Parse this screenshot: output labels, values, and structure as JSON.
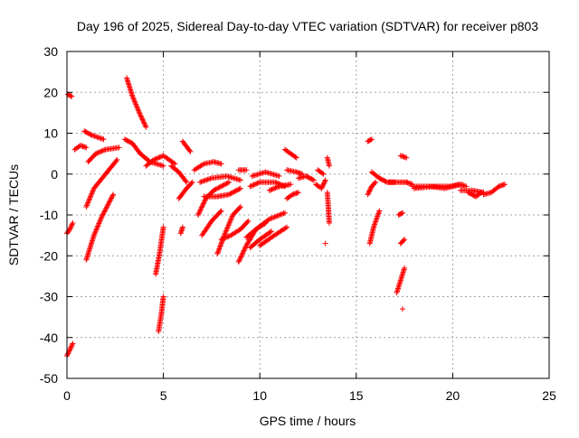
{
  "chart_data": {
    "type": "scatter",
    "title": "Day 196 of 2025, Sidereal Day-to-day VTEC variation (SDTVAR) for receiver p803",
    "xlabel": "GPS time / hours",
    "ylabel": "SDTVAR / TECUs",
    "xlim": [
      0,
      25
    ],
    "ylim": [
      -50,
      30
    ],
    "xticks": [
      0,
      5,
      10,
      15,
      20,
      25
    ],
    "yticks": [
      -50,
      -40,
      -30,
      -20,
      -10,
      0,
      10,
      20,
      30
    ],
    "grid": true,
    "marker": "+",
    "series": [
      {
        "name": "SDTVAR",
        "color": "#ff0000",
        "arcs": [
          [
            [
              0.0,
              -14.5
            ],
            [
              0.15,
              -13.5
            ],
            [
              0.3,
              -12.0
            ]
          ],
          [
            [
              0.0,
              -44.5
            ],
            [
              0.15,
              -43.0
            ],
            [
              0.3,
              -41.5
            ]
          ],
          [
            [
              0.05,
              19.5
            ],
            [
              0.25,
              19.0
            ]
          ],
          [
            [
              0.4,
              6.0
            ],
            [
              0.7,
              7.0
            ],
            [
              1.0,
              6.5
            ]
          ],
          [
            [
              0.9,
              10.5
            ],
            [
              1.3,
              9.5
            ],
            [
              1.9,
              8.5
            ]
          ],
          [
            [
              1.0,
              -8.0
            ],
            [
              1.4,
              -3.5
            ],
            [
              2.0,
              0.0
            ],
            [
              2.6,
              3.5
            ]
          ],
          [
            [
              1.0,
              -21.0
            ],
            [
              1.4,
              -15.0
            ],
            [
              1.8,
              -10.5
            ],
            [
              2.4,
              -5.0
            ]
          ],
          [
            [
              1.1,
              3.0
            ],
            [
              1.5,
              5.0
            ],
            [
              2.0,
              6.0
            ],
            [
              2.7,
              6.5
            ]
          ],
          [
            [
              3.0,
              8.5
            ],
            [
              3.4,
              7.5
            ],
            [
              3.8,
              5.0
            ],
            [
              4.3,
              3.0
            ],
            [
              5.0,
              2.0
            ]
          ],
          [
            [
              3.1,
              23.5
            ],
            [
              3.4,
              19.0
            ],
            [
              3.8,
              14.5
            ],
            [
              4.1,
              11.5
            ]
          ],
          [
            [
              4.1,
              2.0
            ],
            [
              4.5,
              3.5
            ],
            [
              5.0,
              4.5
            ],
            [
              5.6,
              2.5
            ]
          ],
          [
            [
              4.6,
              -24.5
            ],
            [
              4.8,
              -19.5
            ],
            [
              5.0,
              -13.0
            ]
          ],
          [
            [
              4.75,
              -38.5
            ],
            [
              4.9,
              -34.0
            ],
            [
              5.0,
              -30.0
            ]
          ],
          [
            [
              5.4,
              2.0
            ],
            [
              5.8,
              0.5
            ],
            [
              6.2,
              -2.0
            ]
          ],
          [
            [
              5.8,
              -6.0
            ],
            [
              6.2,
              -3.5
            ],
            [
              6.5,
              -2.0
            ]
          ],
          [
            [
              5.9,
              -14.5
            ],
            [
              6.0,
              -13.0
            ]
          ],
          [
            [
              6.0,
              8.0
            ],
            [
              6.4,
              5.5
            ]
          ],
          [
            [
              6.6,
              1.0
            ],
            [
              7.1,
              2.5
            ],
            [
              7.6,
              3.0
            ],
            [
              8.0,
              2.5
            ]
          ],
          [
            [
              6.8,
              -10.0
            ],
            [
              7.2,
              -6.0
            ],
            [
              7.6,
              -4.0
            ],
            [
              8.4,
              -2.0
            ]
          ],
          [
            [
              6.9,
              -2.0
            ],
            [
              7.5,
              -1.0
            ],
            [
              8.3,
              -0.5
            ],
            [
              9.0,
              -1.5
            ]
          ],
          [
            [
              7.0,
              -15.0
            ],
            [
              7.5,
              -11.5
            ],
            [
              8.0,
              -9.0
            ]
          ],
          [
            [
              7.1,
              -5.5
            ],
            [
              7.8,
              -5.5
            ],
            [
              8.4,
              -5.0
            ],
            [
              9.0,
              -3.5
            ]
          ],
          [
            [
              7.8,
              -19.5
            ],
            [
              8.2,
              -14.5
            ],
            [
              8.6,
              -10.0
            ],
            [
              9.0,
              -8.0
            ]
          ],
          [
            [
              8.0,
              -16.0
            ],
            [
              8.5,
              -15.0
            ],
            [
              9.0,
              -13.5
            ],
            [
              9.4,
              -11.5
            ]
          ],
          [
            [
              8.9,
              1.0
            ],
            [
              9.3,
              1.0
            ]
          ],
          [
            [
              8.9,
              -21.5
            ],
            [
              9.3,
              -17.5
            ],
            [
              9.8,
              -13.5
            ],
            [
              10.3,
              -12.0
            ]
          ],
          [
            [
              9.3,
              -15.5
            ],
            [
              9.8,
              -13.5
            ],
            [
              10.5,
              -11.0
            ],
            [
              11.3,
              -9.5
            ]
          ],
          [
            [
              9.5,
              -18.0
            ],
            [
              10.0,
              -16.0
            ],
            [
              10.6,
              -14.0
            ]
          ],
          [
            [
              9.5,
              -3.0
            ],
            [
              10.0,
              -2.0
            ],
            [
              10.8,
              -2.0
            ],
            [
              11.3,
              -3.0
            ]
          ],
          [
            [
              9.6,
              -0.5
            ],
            [
              10.3,
              0.5
            ],
            [
              11.0,
              -0.5
            ]
          ],
          [
            [
              10.0,
              -17.5
            ],
            [
              10.6,
              -15.5
            ],
            [
              11.4,
              -13.0
            ]
          ],
          [
            [
              10.5,
              -4.0
            ],
            [
              11.0,
              -3.0
            ],
            [
              11.6,
              -2.5
            ]
          ],
          [
            [
              11.3,
              6.0
            ],
            [
              11.6,
              5.0
            ],
            [
              11.9,
              4.0
            ]
          ],
          [
            [
              11.4,
              -6.0
            ],
            [
              11.7,
              -5.0
            ],
            [
              12.0,
              -4.5
            ]
          ],
          [
            [
              11.4,
              1.0
            ],
            [
              11.9,
              0.5
            ],
            [
              12.2,
              0.0
            ]
          ],
          [
            [
              12.0,
              -1.0
            ],
            [
              12.4,
              -0.5
            ],
            [
              12.8,
              -1.5
            ]
          ],
          [
            [
              12.9,
              -2.5
            ],
            [
              13.2,
              -3.5
            ],
            [
              13.4,
              -1.5
            ]
          ],
          [
            [
              13.0,
              1.0
            ],
            [
              13.3,
              0.0
            ]
          ],
          [
            [
              13.5,
              -4.5
            ],
            [
              13.55,
              -8.0
            ],
            [
              13.6,
              -12.0
            ]
          ],
          [
            [
              13.5,
              4.0
            ],
            [
              13.6,
              2.0
            ]
          ],
          [
            [
              13.4,
              -17.0
            ]
          ],
          [
            [
              15.6,
              8.0
            ],
            [
              15.8,
              8.5
            ]
          ],
          [
            [
              15.6,
              -5.0
            ],
            [
              15.8,
              -3.0
            ],
            [
              16.0,
              -2.0
            ]
          ],
          [
            [
              15.7,
              -17.0
            ],
            [
              15.9,
              -13.0
            ],
            [
              16.2,
              -9.0
            ]
          ],
          [
            [
              15.8,
              0.5
            ],
            [
              16.2,
              -1.0
            ],
            [
              16.6,
              -2.0
            ],
            [
              17.0,
              -2.0
            ]
          ],
          [
            [
              16.7,
              -2.0
            ],
            [
              17.2,
              -2.0
            ],
            [
              17.6,
              -2.0
            ]
          ],
          [
            [
              17.1,
              -29.0
            ],
            [
              17.3,
              -26.0
            ],
            [
              17.5,
              -23.0
            ]
          ],
          [
            [
              17.2,
              -10.0
            ],
            [
              17.4,
              -9.5
            ]
          ],
          [
            [
              17.3,
              -17.0
            ],
            [
              17.5,
              -16.0
            ]
          ],
          [
            [
              17.3,
              4.5
            ],
            [
              17.6,
              4.0
            ]
          ],
          [
            [
              17.4,
              -33.0
            ]
          ],
          [
            [
              17.6,
              -2.0
            ],
            [
              17.9,
              -2.5
            ]
          ],
          [
            [
              17.9,
              -3.0
            ],
            [
              18.8,
              -3.0
            ],
            [
              19.6,
              -3.5
            ],
            [
              20.3,
              -2.5
            ],
            [
              20.7,
              -3.0
            ]
          ],
          [
            [
              18.0,
              -3.5
            ],
            [
              19.0,
              -3.0
            ],
            [
              20.0,
              -3.0
            ],
            [
              20.5,
              -2.5
            ]
          ],
          [
            [
              20.4,
              -4.0
            ],
            [
              21.0,
              -4.0
            ],
            [
              21.6,
              -4.5
            ]
          ],
          [
            [
              20.8,
              -4.5
            ],
            [
              21.2,
              -5.5
            ],
            [
              21.5,
              -4.5
            ]
          ],
          [
            [
              21.6,
              -5.0
            ],
            [
              22.0,
              -4.5
            ],
            [
              22.4,
              -3.0
            ],
            [
              22.7,
              -2.5
            ]
          ]
        ]
      }
    ]
  }
}
